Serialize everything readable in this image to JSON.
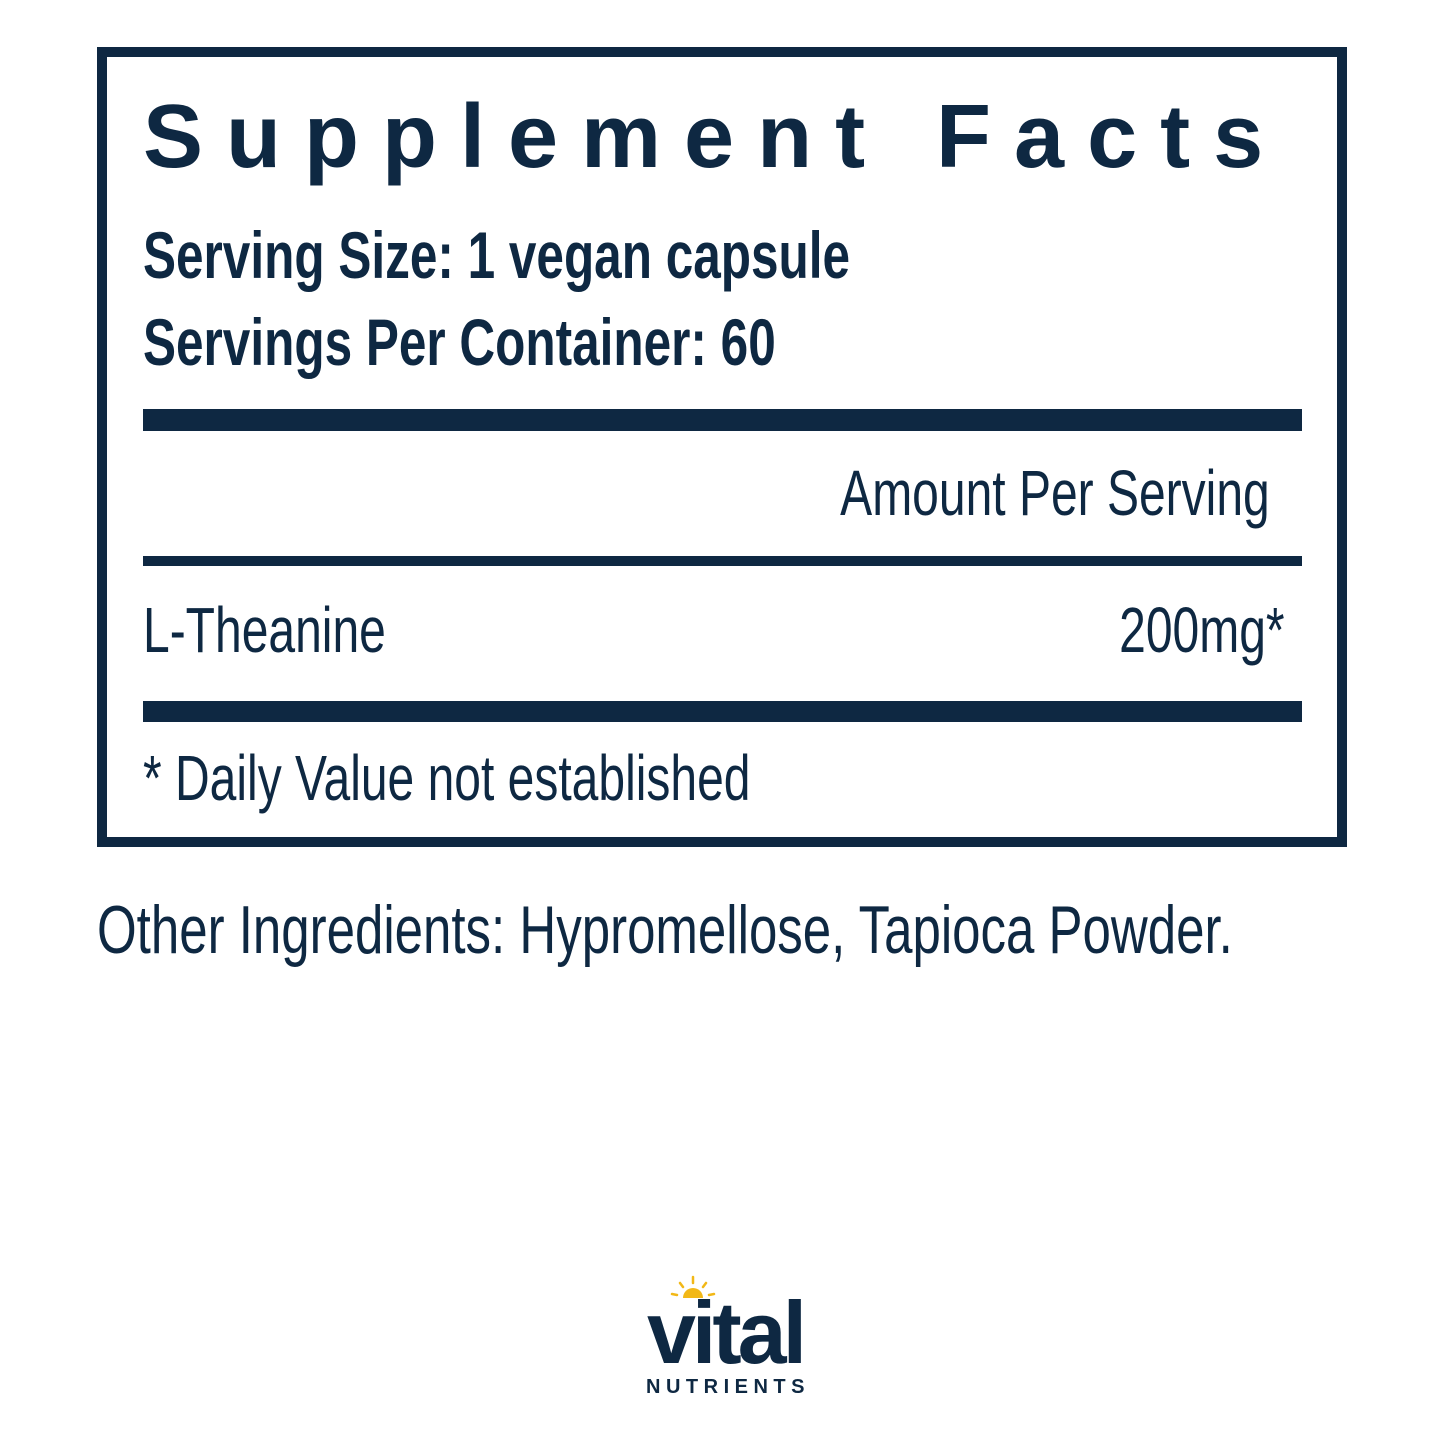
{
  "label": {
    "title": "Supplement Facts",
    "serving_size": "Serving Size: 1 vegan capsule",
    "servings_per_container": "Servings Per Container: 60",
    "amount_header": "Amount Per Serving",
    "ingredients": [
      {
        "name": "L-Theanine",
        "amount": "200mg*"
      }
    ],
    "footnote": "* Daily Value not established"
  },
  "other_ingredients": "Other Ingredients: Hypromellose, Tapioca Powder.",
  "brand": {
    "name": "vital",
    "tagline": "NUTRIENTS"
  },
  "colors": {
    "primary": "#0e2842",
    "sun": "#f2b817"
  }
}
